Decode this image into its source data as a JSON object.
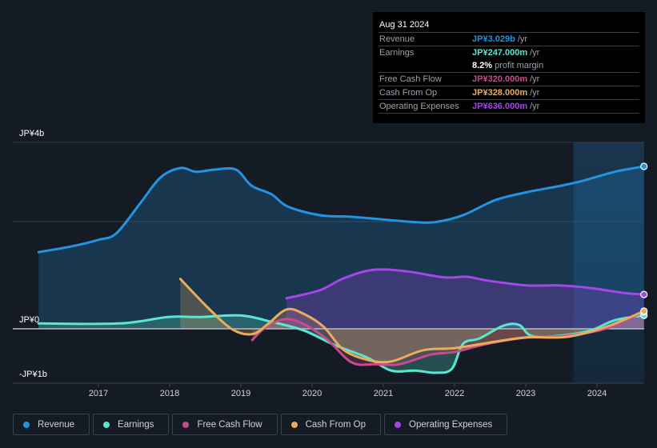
{
  "tooltip": {
    "date": "Aug 31 2024",
    "rows": [
      {
        "label": "Revenue",
        "value": "JP¥3.029b",
        "unit": "/yr",
        "color": "#2394df"
      },
      {
        "label": "Earnings",
        "value": "JP¥247.000m",
        "unit": "/yr",
        "color": "#59e8cf"
      },
      {
        "label": "",
        "value": "8.2%",
        "unit": "profit margin",
        "color": "#ffffff"
      },
      {
        "label": "Free Cash Flow",
        "value": "JP¥320.000m",
        "unit": "/yr",
        "color": "#c84b8b"
      },
      {
        "label": "Cash From Op",
        "value": "JP¥328.000m",
        "unit": "/yr",
        "color": "#e9ad5d"
      },
      {
        "label": "Operating Expenses",
        "value": "JP¥636.000m",
        "unit": "/yr",
        "color": "#a446ea"
      }
    ]
  },
  "legend": [
    {
      "label": "Revenue",
      "color": "#2394df"
    },
    {
      "label": "Earnings",
      "color": "#59e8cf"
    },
    {
      "label": "Free Cash Flow",
      "color": "#c84b8b"
    },
    {
      "label": "Cash From Op",
      "color": "#e9ad5d"
    },
    {
      "label": "Operating Expenses",
      "color": "#a446ea"
    }
  ],
  "chart_data": {
    "type": "area",
    "title": "",
    "xlabel": "",
    "ylabel": "",
    "unit": "JP¥ billions",
    "y_tick_labels": [
      {
        "value": 3.48,
        "label": "JP¥4b"
      },
      {
        "value": 0,
        "label": "JP¥0"
      },
      {
        "value": -1,
        "label": "-JP¥1b"
      }
    ],
    "gridlines": [
      3.48,
      2.0
    ],
    "ylim": [
      -1,
      3.48
    ],
    "xlim": [
      2016.16,
      2024.66
    ],
    "x_ticks": [
      2017,
      2018,
      2019,
      2020,
      2021,
      2022,
      2023,
      2024
    ],
    "highlight_range": [
      2023.67,
      2024.66
    ],
    "series": [
      {
        "name": "Revenue",
        "color": "#2394df",
        "fill": true,
        "points": [
          [
            2016.16,
            1.43
          ],
          [
            2016.63,
            1.54
          ],
          [
            2017.0,
            1.66
          ],
          [
            2017.25,
            1.78
          ],
          [
            2017.58,
            2.33
          ],
          [
            2017.87,
            2.82
          ],
          [
            2018.15,
            3.0
          ],
          [
            2018.37,
            2.93
          ],
          [
            2018.63,
            2.97
          ],
          [
            2018.93,
            2.97
          ],
          [
            2019.15,
            2.67
          ],
          [
            2019.43,
            2.51
          ],
          [
            2019.66,
            2.28
          ],
          [
            2020.11,
            2.12
          ],
          [
            2020.55,
            2.09
          ],
          [
            2021.0,
            2.04
          ],
          [
            2021.45,
            1.99
          ],
          [
            2021.73,
            1.99
          ],
          [
            2022.12,
            2.12
          ],
          [
            2022.57,
            2.4
          ],
          [
            2023.02,
            2.55
          ],
          [
            2023.46,
            2.66
          ],
          [
            2023.8,
            2.76
          ],
          [
            2024.25,
            2.93
          ],
          [
            2024.66,
            3.03
          ]
        ]
      },
      {
        "name": "Earnings",
        "color": "#59e8cf",
        "fill": true,
        "points": [
          [
            2016.16,
            0.1
          ],
          [
            2017.3,
            0.1
          ],
          [
            2017.98,
            0.22
          ],
          [
            2018.43,
            0.22
          ],
          [
            2018.99,
            0.25
          ],
          [
            2019.43,
            0.13
          ],
          [
            2019.88,
            -0.03
          ],
          [
            2020.33,
            -0.31
          ],
          [
            2020.78,
            -0.54
          ],
          [
            2021.11,
            -0.78
          ],
          [
            2021.45,
            -0.78
          ],
          [
            2021.73,
            -0.82
          ],
          [
            2021.96,
            -0.75
          ],
          [
            2022.12,
            -0.28
          ],
          [
            2022.35,
            -0.18
          ],
          [
            2022.69,
            0.06
          ],
          [
            2022.91,
            0.07
          ],
          [
            2023.08,
            -0.13
          ],
          [
            2023.46,
            -0.13
          ],
          [
            2023.91,
            -0.03
          ],
          [
            2024.25,
            0.16
          ],
          [
            2024.66,
            0.25
          ]
        ]
      },
      {
        "name": "Free Cash Flow",
        "color": "#c84b8b",
        "fill": true,
        "points": [
          [
            2019.16,
            -0.21
          ],
          [
            2019.33,
            0.01
          ],
          [
            2019.61,
            0.18
          ],
          [
            2019.88,
            0.09
          ],
          [
            2020.22,
            -0.21
          ],
          [
            2020.56,
            -0.63
          ],
          [
            2020.89,
            -0.66
          ],
          [
            2021.23,
            -0.66
          ],
          [
            2021.67,
            -0.48
          ],
          [
            2022.01,
            -0.43
          ],
          [
            2022.46,
            -0.28
          ],
          [
            2023.02,
            -0.16
          ],
          [
            2023.58,
            -0.13
          ],
          [
            2024.14,
            0.01
          ],
          [
            2024.66,
            0.32
          ]
        ]
      },
      {
        "name": "Cash From Op",
        "color": "#e9ad5d",
        "fill": true,
        "points": [
          [
            2018.15,
            0.93
          ],
          [
            2018.54,
            0.39
          ],
          [
            2018.88,
            -0.01
          ],
          [
            2019.16,
            -0.1
          ],
          [
            2019.38,
            0.09
          ],
          [
            2019.64,
            0.36
          ],
          [
            2019.88,
            0.28
          ],
          [
            2020.16,
            0.04
          ],
          [
            2020.44,
            -0.39
          ],
          [
            2020.78,
            -0.58
          ],
          [
            2021.11,
            -0.61
          ],
          [
            2021.56,
            -0.4
          ],
          [
            2022.01,
            -0.36
          ],
          [
            2022.57,
            -0.24
          ],
          [
            2023.02,
            -0.16
          ],
          [
            2023.58,
            -0.15
          ],
          [
            2024.14,
            0.04
          ],
          [
            2024.66,
            0.33
          ]
        ]
      },
      {
        "name": "Operating Expenses",
        "color": "#a446ea",
        "fill": true,
        "points": [
          [
            2019.64,
            0.57
          ],
          [
            2020.11,
            0.72
          ],
          [
            2020.44,
            0.94
          ],
          [
            2020.86,
            1.1
          ],
          [
            2021.34,
            1.07
          ],
          [
            2021.85,
            0.96
          ],
          [
            2022.18,
            0.97
          ],
          [
            2022.46,
            0.9
          ],
          [
            2023.02,
            0.81
          ],
          [
            2023.47,
            0.81
          ],
          [
            2023.92,
            0.76
          ],
          [
            2024.37,
            0.67
          ],
          [
            2024.66,
            0.64
          ]
        ]
      }
    ]
  }
}
